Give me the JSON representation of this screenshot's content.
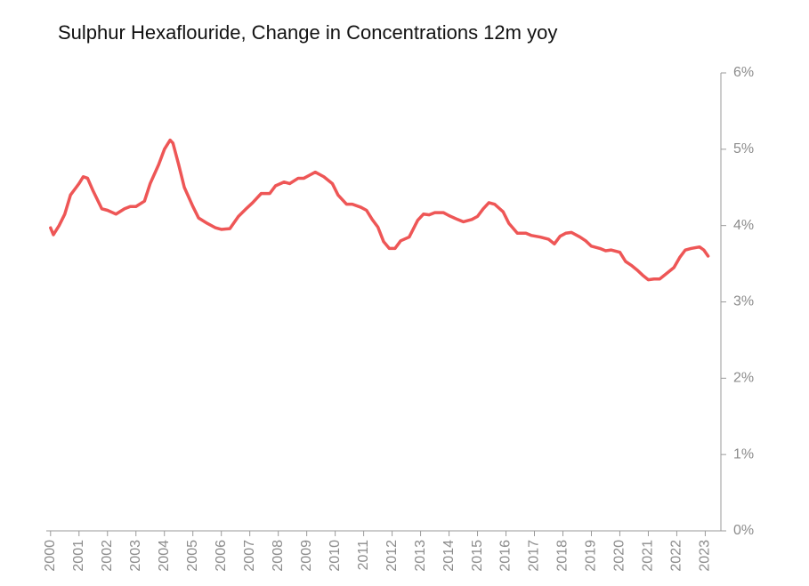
{
  "chart_data": {
    "type": "line",
    "title": "Sulphur Hexaflouride, Change in Concentrations 12m yoy",
    "x": [
      2000.0,
      2000.1,
      2000.3,
      2000.5,
      2000.7,
      2000.9,
      2001.0,
      2001.15,
      2001.3,
      2001.5,
      2001.8,
      2002.0,
      2002.3,
      2002.6,
      2002.8,
      2003.0,
      2003.3,
      2003.5,
      2003.8,
      2004.0,
      2004.2,
      2004.3,
      2004.5,
      2004.7,
      2005.0,
      2005.2,
      2005.5,
      2005.8,
      2006.0,
      2006.3,
      2006.6,
      2006.9,
      2007.1,
      2007.4,
      2007.7,
      2007.9,
      2008.2,
      2008.4,
      2008.7,
      2008.9,
      2009.1,
      2009.3,
      2009.6,
      2009.9,
      2010.1,
      2010.4,
      2010.6,
      2010.9,
      2011.1,
      2011.3,
      2011.5,
      2011.7,
      2011.9,
      2012.1,
      2012.3,
      2012.6,
      2012.9,
      2013.1,
      2013.3,
      2013.5,
      2013.8,
      2014.0,
      2014.3,
      2014.5,
      2014.8,
      2015.0,
      2015.2,
      2015.4,
      2015.6,
      2015.9,
      2016.1,
      2016.4,
      2016.7,
      2016.9,
      2017.2,
      2017.5,
      2017.7,
      2017.9,
      2018.1,
      2018.3,
      2018.6,
      2018.8,
      2019.0,
      2019.3,
      2019.5,
      2019.7,
      2020.0,
      2020.2,
      2020.4,
      2020.6,
      2020.8,
      2021.0,
      2021.2,
      2021.4,
      2021.6,
      2021.9,
      2022.1,
      2022.3,
      2022.5,
      2022.8,
      2022.95,
      2023.1
    ],
    "series": [
      {
        "color": "#ee5656",
        "values": [
          3.97,
          3.88,
          4.0,
          4.15,
          4.4,
          4.5,
          4.55,
          4.64,
          4.62,
          4.45,
          4.22,
          4.2,
          4.15,
          4.22,
          4.25,
          4.25,
          4.32,
          4.55,
          4.8,
          5.0,
          5.12,
          5.08,
          4.8,
          4.5,
          4.25,
          4.1,
          4.03,
          3.97,
          3.95,
          3.96,
          4.12,
          4.23,
          4.3,
          4.42,
          4.42,
          4.52,
          4.57,
          4.55,
          4.62,
          4.62,
          4.66,
          4.7,
          4.64,
          4.55,
          4.4,
          4.28,
          4.28,
          4.24,
          4.2,
          4.08,
          3.98,
          3.79,
          3.7,
          3.7,
          3.8,
          3.85,
          4.07,
          4.15,
          4.14,
          4.17,
          4.17,
          4.13,
          4.08,
          4.05,
          4.08,
          4.12,
          4.22,
          4.3,
          4.28,
          4.18,
          4.03,
          3.9,
          3.9,
          3.87,
          3.85,
          3.82,
          3.76,
          3.86,
          3.9,
          3.91,
          3.85,
          3.8,
          3.73,
          3.7,
          3.67,
          3.68,
          3.65,
          3.53,
          3.48,
          3.42,
          3.35,
          3.29,
          3.3,
          3.3,
          3.36,
          3.45,
          3.58,
          3.68,
          3.7,
          3.72,
          3.68,
          3.6
        ]
      }
    ],
    "xlim": [
      1999.85,
      2023.55
    ],
    "xticks": [
      2000,
      2001,
      2002,
      2003,
      2004,
      2005,
      2006,
      2007,
      2008,
      2009,
      2010,
      2011,
      2012,
      2013,
      2014,
      2015,
      2016,
      2017,
      2018,
      2019,
      2020,
      2021,
      2022,
      2023
    ],
    "ylim": [
      0,
      6
    ],
    "yticks": [
      {
        "value": 0,
        "label": "0%"
      },
      {
        "value": 1,
        "label": "1%"
      },
      {
        "value": 2,
        "label": "2%"
      },
      {
        "value": 3,
        "label": "3%"
      },
      {
        "value": 4,
        "label": "4%"
      },
      {
        "value": 5,
        "label": "5%"
      },
      {
        "value": 6,
        "label": "6%"
      }
    ],
    "y_axis_side": "right"
  }
}
